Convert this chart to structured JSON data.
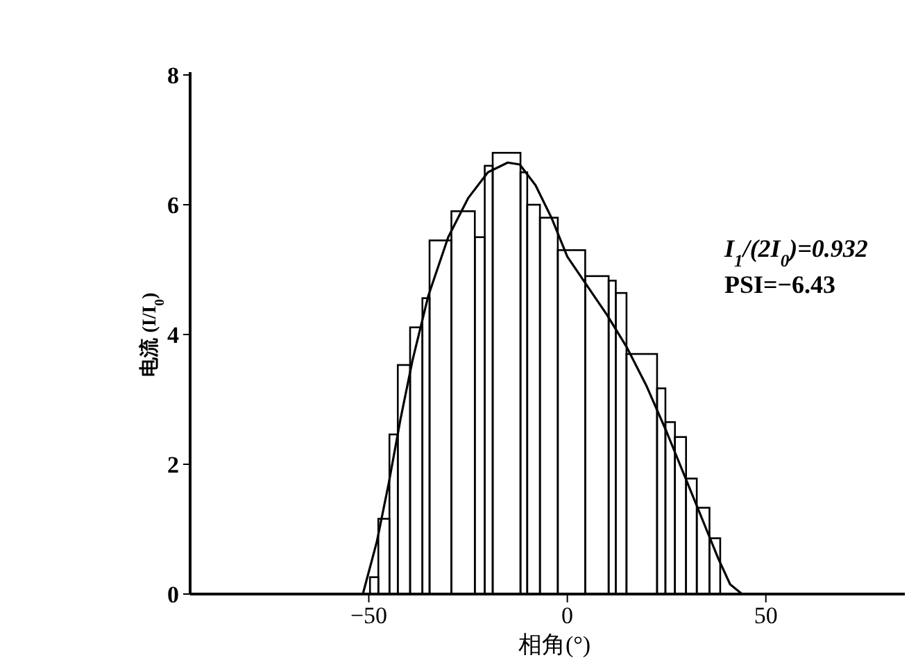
{
  "chart_data": {
    "type": "histogram",
    "xlabel": "相角(°)",
    "ylabel": "电流 (I/I$_{0}$)",
    "annotations": [
      "I$_{1}$/(2I$_{0}$)=0.932",
      "PSI=−6.43"
    ],
    "bins": [
      -49.7,
      -47.6,
      -44.8,
      -42.7,
      -39.6,
      -36.5,
      -34.7,
      -29.2,
      -23.3,
      -20.8,
      -18.8,
      -11.8,
      -10.1,
      -6.9,
      -2.4,
      4.5,
      10.4,
      12.2,
      14.9,
      22.6,
      24.7,
      27.1,
      29.9,
      32.6,
      35.8,
      38.5
    ],
    "values": [
      0.26,
      1.16,
      2.46,
      3.53,
      4.11,
      4.56,
      5.45,
      5.9,
      5.5,
      6.6,
      6.8,
      6.5,
      6.0,
      5.8,
      5.3,
      4.9,
      4.83,
      4.64,
      3.7,
      3.17,
      2.65,
      2.42,
      1.78,
      1.33,
      0.86
    ],
    "color": "#000000",
    "series": [
      {
        "type": "line",
        "color": "#000000",
        "x": [
          -51.5,
          -48,
          -45,
          -42,
          -39,
          -35,
          -30,
          -25,
          -20,
          -15,
          -12,
          -8,
          -4,
          0,
          5,
          10,
          15,
          20,
          25,
          30,
          35,
          38,
          41,
          44
        ],
        "values": [
          0,
          0.8,
          1.7,
          2.7,
          3.6,
          4.6,
          5.5,
          6.1,
          6.5,
          6.65,
          6.62,
          6.3,
          5.8,
          5.2,
          4.75,
          4.3,
          3.8,
          3.2,
          2.5,
          1.75,
          1.0,
          0.55,
          0.15,
          0
        ]
      }
    ],
    "xlim": [
      -95,
      85
    ],
    "ylim": [
      0,
      8
    ],
    "xticks": [
      {
        "value": -50,
        "label": "−50"
      },
      0,
      50
    ],
    "yticks": [
      0,
      2,
      4,
      6,
      8
    ]
  }
}
